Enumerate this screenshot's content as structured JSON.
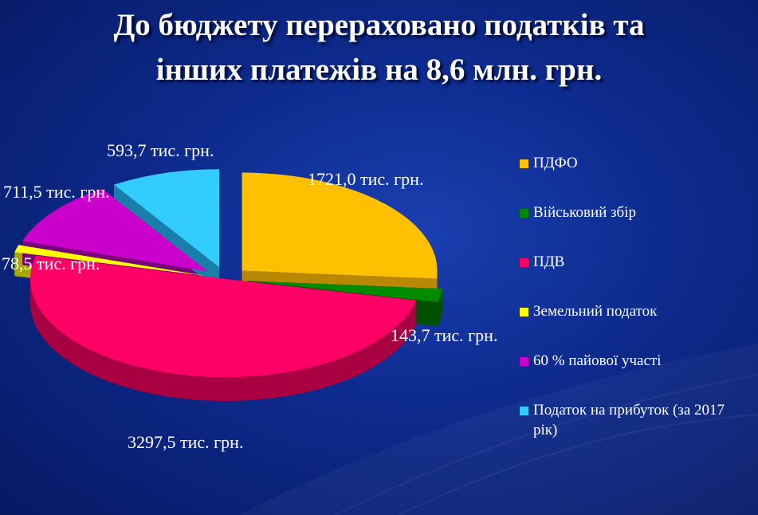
{
  "title": {
    "line1": "До бюджету перераховано податків та",
    "line2": "інших платежів на  8,6 млн. грн."
  },
  "chart_data": {
    "type": "pie",
    "three_d": true,
    "unit": "тис. грн.",
    "legend_position": "right",
    "slices": [
      {
        "name": "ПДФО",
        "value": 1721.0,
        "label": "1721,0 тис. грн.",
        "color": "#ffc000",
        "side_color": "#b78800",
        "exploded": true
      },
      {
        "name": "Військовий збір",
        "value": 143.7,
        "label": "143,7 тис. грн.",
        "color": "#008a00",
        "side_color": "#005000",
        "exploded": true
      },
      {
        "name": "ПДВ",
        "value": 3297.5,
        "label": "3297,5 тис. грн.",
        "color": "#ff0066",
        "side_color": "#a80040",
        "exploded": false
      },
      {
        "name": "Земельний податок",
        "value": 78.5,
        "label": "78,5 тис. грн.",
        "color": "#ffff00",
        "side_color": "#a8a800",
        "exploded": true
      },
      {
        "name": "60 % пайової участі",
        "value": 711.5,
        "label": "711,5 тис. грн.",
        "color": "#cc00cc",
        "side_color": "#7a007a",
        "exploded": true
      },
      {
        "name": "Податок на прибуток (за 2017 рік)",
        "value": 593.7,
        "label": "593,7 тис. грн.",
        "color": "#33ccff",
        "side_color": "#1a7fa8",
        "exploded": true
      }
    ]
  }
}
